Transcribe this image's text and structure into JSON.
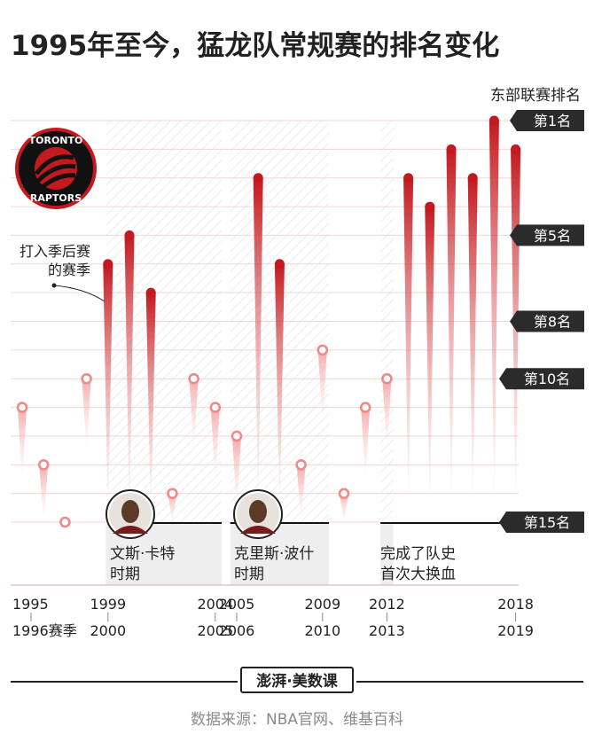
{
  "title": "1995年至今，猛龙队常规赛的排名变化",
  "logo": {
    "top_text": "TORONTO",
    "bottom_text": "RAPTORS"
  },
  "chart_data": {
    "type": "scatter",
    "title": "1995年至今，猛龙队常规赛的排名变化",
    "ylabel": "东部联赛排名",
    "ylim": [
      1,
      15
    ],
    "y_inverted": true,
    "y_ticks": [
      "第1名",
      "第5名",
      "第8名",
      "第10名",
      "第15名"
    ],
    "x_tick_labels": [
      {
        "season": "1995-1996",
        "top": "1995",
        "bottom": "1996赛季"
      },
      {
        "season": "1999-2000",
        "top": "1999",
        "bottom": "2000"
      },
      {
        "season": "2004-2005",
        "top": "2004",
        "bottom": "2005"
      },
      {
        "season": "2005-2006",
        "top": "2005",
        "bottom": "2006"
      },
      {
        "season": "2009-2010",
        "top": "2009",
        "bottom": "2010"
      },
      {
        "season": "2012-2013",
        "top": "2012",
        "bottom": "2013"
      },
      {
        "season": "2018-2019",
        "top": "2018",
        "bottom": "2019"
      }
    ],
    "series": [
      {
        "points": [
          {
            "season": "1995-96",
            "rank": 11,
            "playoffs": false
          },
          {
            "season": "1996-97",
            "rank": 13,
            "playoffs": false
          },
          {
            "season": "1997-98",
            "rank": 15,
            "playoffs": false
          },
          {
            "season": "1998-99",
            "rank": 10,
            "playoffs": false
          },
          {
            "season": "1999-00",
            "rank": 6,
            "playoffs": true
          },
          {
            "season": "2000-01",
            "rank": 5,
            "playoffs": true
          },
          {
            "season": "2001-02",
            "rank": 7,
            "playoffs": true
          },
          {
            "season": "2002-03",
            "rank": 14,
            "playoffs": false
          },
          {
            "season": "2003-04",
            "rank": 10,
            "playoffs": false
          },
          {
            "season": "2004-05",
            "rank": 11,
            "playoffs": false
          },
          {
            "season": "2005-06",
            "rank": 12,
            "playoffs": false
          },
          {
            "season": "2006-07",
            "rank": 3,
            "playoffs": true
          },
          {
            "season": "2007-08",
            "rank": 6,
            "playoffs": true
          },
          {
            "season": "2008-09",
            "rank": 13,
            "playoffs": false
          },
          {
            "season": "2009-10",
            "rank": 9,
            "playoffs": false
          },
          {
            "season": "2010-11",
            "rank": 14,
            "playoffs": false
          },
          {
            "season": "2011-12",
            "rank": 11,
            "playoffs": false
          },
          {
            "season": "2012-13",
            "rank": 10,
            "playoffs": false
          },
          {
            "season": "2013-14",
            "rank": 3,
            "playoffs": true
          },
          {
            "season": "2014-15",
            "rank": 4,
            "playoffs": true
          },
          {
            "season": "2015-16",
            "rank": 2,
            "playoffs": true
          },
          {
            "season": "2016-17",
            "rank": 3,
            "playoffs": true
          },
          {
            "season": "2017-18",
            "rank": 1,
            "playoffs": true
          },
          {
            "season": "2018-19",
            "rank": 2,
            "playoffs": true
          }
        ]
      }
    ],
    "annotations": {
      "playoffs_note": [
        "打入季后赛",
        "的赛季"
      ],
      "eras": [
        {
          "seasons": "1998-99 to 2004-05",
          "label": [
            "文斯·卡特",
            "时期"
          ]
        },
        {
          "seasons": "2003-04 to 2009-10",
          "label": [
            "克里斯·波什",
            "时期"
          ]
        },
        {
          "seasons": "2012-13",
          "label": [
            "完成了队史",
            "首次大换血"
          ]
        }
      ]
    },
    "colors": {
      "playoff_dot": "#c3191f",
      "non_playoff_ring": "#f08a8a",
      "gridline": "#f2d6d6",
      "era_band": "#eeeeee",
      "tick_label_bg": "#2b2b2b"
    },
    "grid": true
  },
  "footer": {
    "brand": "澎湃·美数课",
    "source": "数据来源：NBA官网、维基百科"
  }
}
